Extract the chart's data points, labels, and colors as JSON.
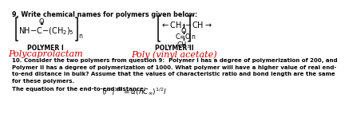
{
  "bg_color": "#ffffff",
  "title_text": "9. Write chemical names for polymers given below:",
  "polymer1_label": "POLYMER I",
  "polymer1_name": "Polycaprolactam",
  "polymer2_label": "POLYMER II",
  "polymer2_name": "Poly (vinyl acetate)",
  "body_line1": "10. Consider the two polymers from question 9:  Polymer I has a degree of polymerization of 200, and",
  "body_line2": "Polymer II has a degree of polymerization of 1000. What polymer will have a higher value of real end-",
  "body_line3": "to-end distance in bulk? Assume that the values of characteristic ratio and bond length are the same",
  "body_line4": "for these polymers.",
  "equation_label": "The equation for the end-to-end distance:",
  "red_color": "#cc0000",
  "black_color": "#000000"
}
